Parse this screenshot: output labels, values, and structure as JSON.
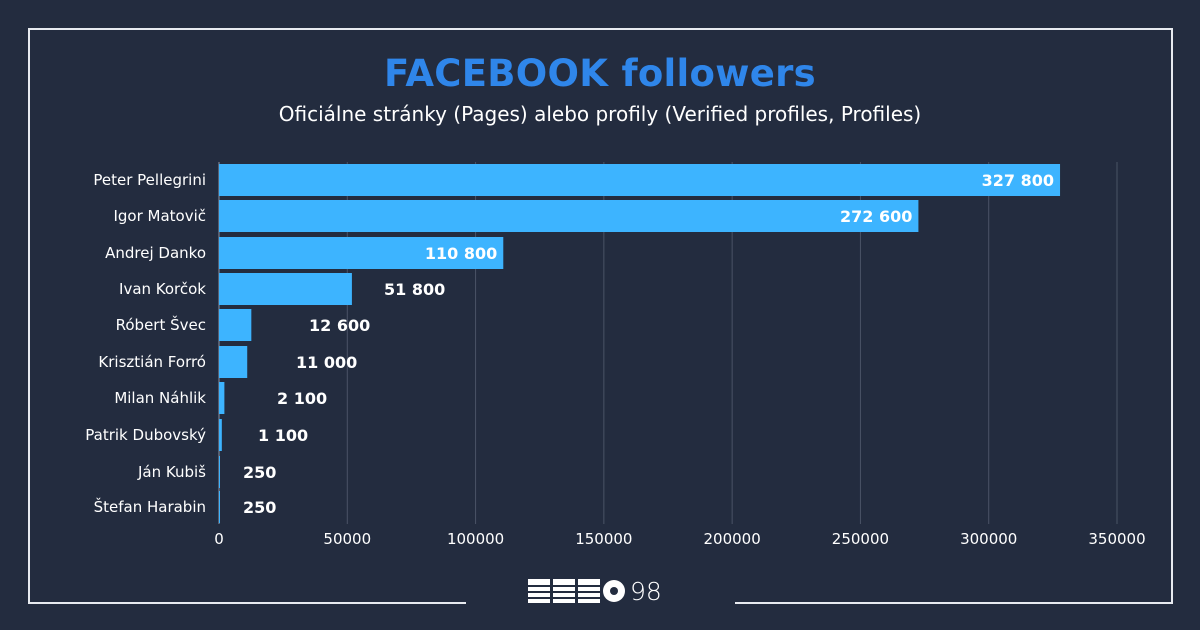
{
  "title": "FACEBOOK followers",
  "subtitle": "Oficiálne stránky (Pages) alebo profily (Verified profiles, Profiles)",
  "logo": {
    "text": "MEMO 98",
    "number": "98"
  },
  "colors": {
    "bar": "#3db4ff",
    "title": "#2f86ea",
    "background": "#232c3f",
    "grid": "#4a5366"
  },
  "chart_data": {
    "type": "bar",
    "orientation": "horizontal",
    "title": "FACEBOOK followers",
    "subtitle": "Oficiálne stránky (Pages) alebo profily (Verified profiles, Profiles)",
    "categories": [
      "Peter Pellegrini",
      "Igor Matovič",
      "Andrej Danko",
      "Ivan Korčok",
      "Róbert Švec",
      "Krisztián Forró",
      "Milan Náhlik",
      "Patrik Dubovský",
      "Ján Kubiš",
      "Štefan Harabin"
    ],
    "values": [
      327800,
      272600,
      110800,
      51800,
      12600,
      11000,
      2100,
      1100,
      250,
      250
    ],
    "value_labels": [
      "327 800",
      "272 600",
      "110 800",
      "51 800",
      "12 600",
      "11 000",
      "2 100",
      "1 100",
      "250",
      "250"
    ],
    "xlim": [
      0,
      350000
    ],
    "xticks": [
      0,
      50000,
      100000,
      150000,
      200000,
      250000,
      300000,
      350000
    ],
    "xtick_labels": [
      "0",
      "50000",
      "100000",
      "150000",
      "200000",
      "250000",
      "300000",
      "350000"
    ],
    "grid": true,
    "legend": "none"
  }
}
